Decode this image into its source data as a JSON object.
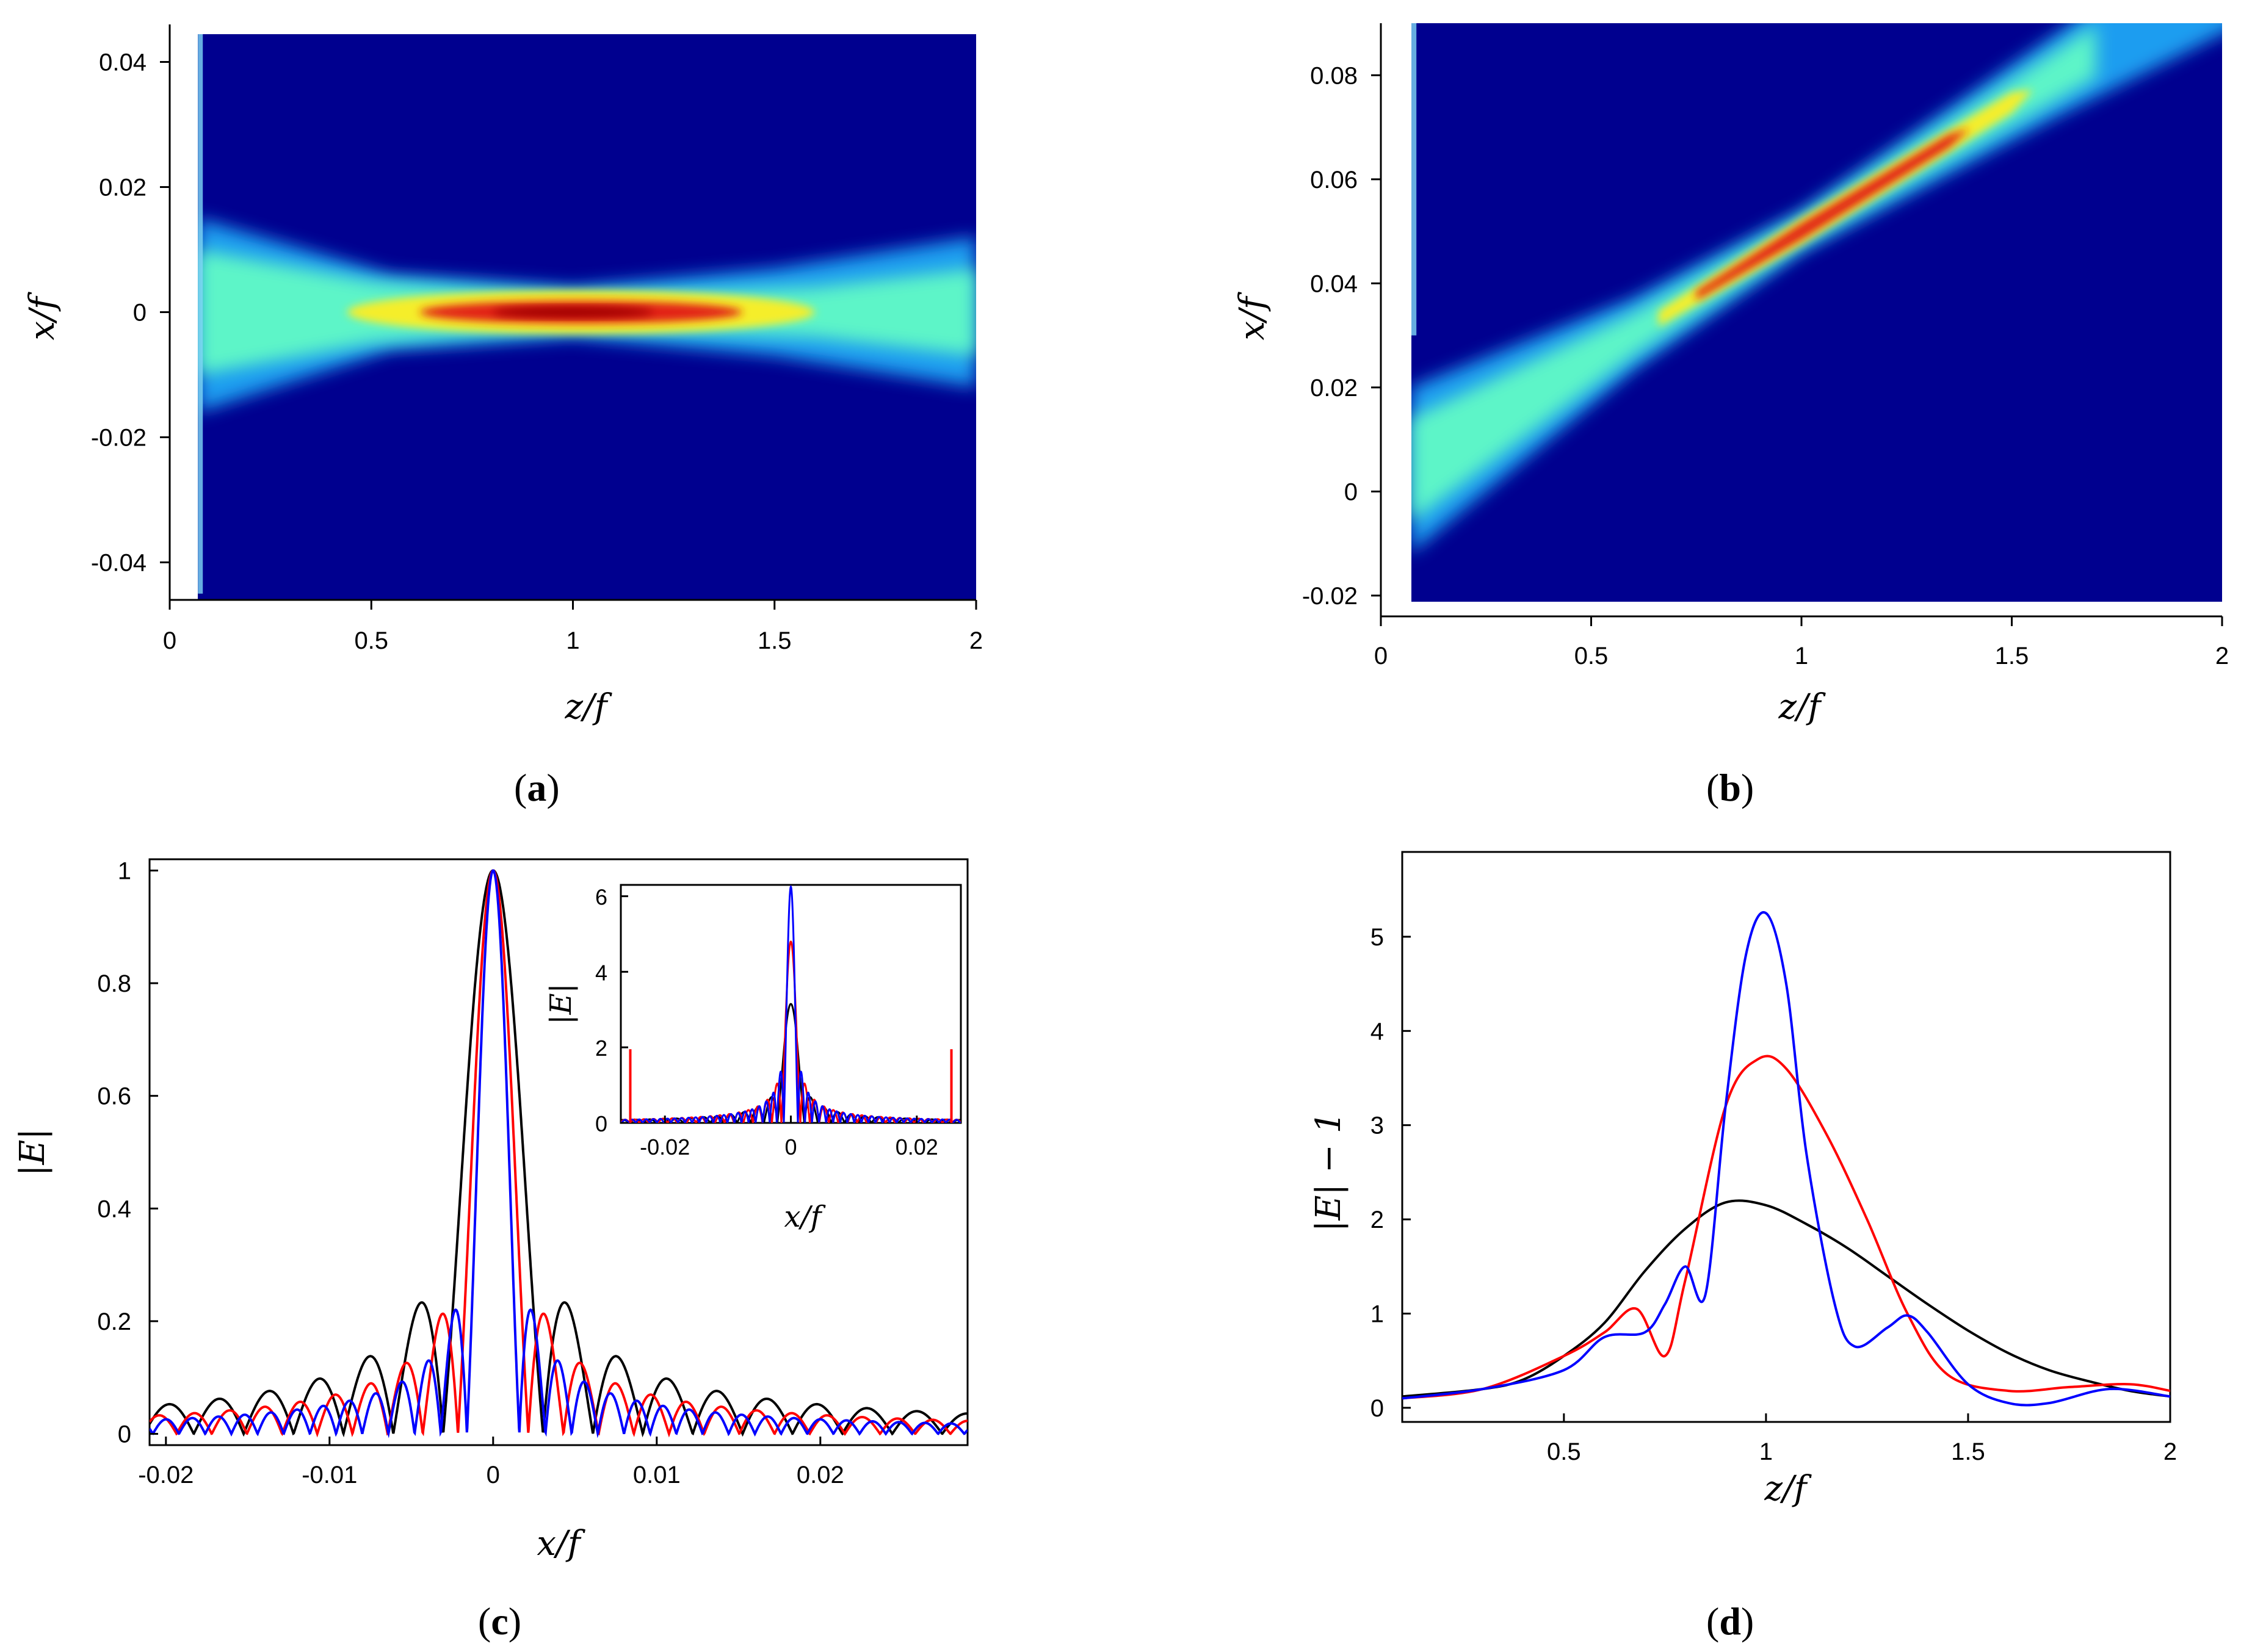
{
  "chart_data": [
    {
      "id": "a",
      "type": "heatmap",
      "panel_label": "a",
      "xlabel": "z/f",
      "ylabel": "x/f",
      "xlim": [
        0,
        2
      ],
      "ylim": [
        -0.046,
        0.046
      ],
      "xticks": [
        "0",
        "0.5",
        "1",
        "1.5",
        "2"
      ],
      "xtick_values": [
        0,
        0.5,
        1,
        1.5,
        2
      ],
      "yticks": [
        "-0.04",
        "-0.02",
        "0",
        "0.02",
        "0.04"
      ],
      "ytick_values": [
        -0.04,
        -0.02,
        0,
        0.02,
        0.04
      ],
      "data_extent": {
        "z": [
          0.07,
          2
        ],
        "x": [
          -0.045,
          0.045
        ]
      },
      "beam": {
        "focus_z": 1.0,
        "focus_x": 0.0,
        "entry_x_min": -0.016,
        "entry_x_max": 0.015,
        "exit_x_min": -0.012,
        "exit_x_max": 0.012
      },
      "colormap": "jet"
    },
    {
      "id": "b",
      "type": "heatmap",
      "panel_label": "b",
      "xlabel": "z/f",
      "ylabel": "x/f",
      "xlim": [
        0,
        2
      ],
      "ylim": [
        -0.024,
        0.09
      ],
      "xticks": [
        "0",
        "0.5",
        "1",
        "1.5",
        "2"
      ],
      "xtick_values": [
        0,
        0.5,
        1,
        1.5,
        2
      ],
      "yticks": [
        "-0.02",
        "0",
        "0.02",
        "0.04",
        "0.06",
        "0.08"
      ],
      "ytick_values": [
        -0.02,
        0,
        0.02,
        0.04,
        0.06,
        0.08
      ],
      "data_extent": {
        "z": [
          0.07,
          2
        ],
        "x": [
          -0.022,
          0.09
        ]
      },
      "beam": {
        "focus_z": 1.0,
        "focus_x": 0.05,
        "entry_x_min": -0.012,
        "entry_x_max": 0.02
      },
      "colormap": "jet"
    },
    {
      "id": "c",
      "type": "line",
      "panel_label": "c",
      "xlabel": "x/f",
      "ylabel": "|E|",
      "xlim": [
        -0.021,
        0.029
      ],
      "ylim": [
        -0.02,
        1.02
      ],
      "xticks": [
        "-0.02",
        "-0.01",
        "0",
        "0.01",
        "0.02"
      ],
      "xtick_values": [
        -0.02,
        -0.01,
        0,
        0.01,
        0.02
      ],
      "yticks": [
        "0",
        "0.2",
        "0.4",
        "0.6",
        "0.8",
        "1"
      ],
      "ytick_values": [
        0,
        0.2,
        0.4,
        0.6,
        0.8,
        1
      ],
      "series": [
        {
          "name": "black",
          "color": "#000000",
          "zero": 0.00305,
          "sidelobe": 0.233
        },
        {
          "name": "red",
          "color": "#ff0000",
          "zero": 0.00215,
          "sidelobe": 0.213
        },
        {
          "name": "blue",
          "color": "#0000ff",
          "zero": 0.0016,
          "sidelobe": 0.22
        }
      ],
      "inset": {
        "xlabel": "x/f",
        "ylabel": "|E|",
        "xlim": [
          -0.027,
          0.027
        ],
        "ylim": [
          0,
          6.3
        ],
        "xticks": [
          "-0.02",
          "0",
          "0.02"
        ],
        "xtick_values": [
          -0.02,
          0,
          0.02
        ],
        "yticks": [
          "0",
          "2",
          "4",
          "6"
        ],
        "ytick_values": [
          0,
          2,
          4,
          6
        ],
        "peaks": {
          "black": 3.15,
          "red": 4.8,
          "blue": 6.25
        },
        "red_edge_spikes": {
          "x": [
            -0.0255,
            0.0255
          ],
          "height": 1.95
        }
      }
    },
    {
      "id": "d",
      "type": "line",
      "panel_label": "d",
      "xlabel": "z/f",
      "ylabel": "|E| − 1",
      "xlim": [
        0.1,
        2
      ],
      "ylim": [
        -0.15,
        5.9
      ],
      "xticks": [
        "0.5",
        "1",
        "1.5",
        "2"
      ],
      "xtick_values": [
        0.5,
        1,
        1.5,
        2
      ],
      "yticks": [
        "0",
        "1",
        "2",
        "3",
        "4",
        "5"
      ],
      "ytick_values": [
        0,
        1,
        2,
        3,
        4,
        5
      ],
      "series": [
        {
          "name": "black",
          "color": "#000000",
          "z": [
            0.1,
            0.3,
            0.4,
            0.5,
            0.6,
            0.7,
            0.8,
            0.9,
            1.0,
            1.1,
            1.2,
            1.3,
            1.4,
            1.5,
            1.6,
            1.7,
            1.8,
            1.9,
            2.0
          ],
          "y": [
            0.12,
            0.2,
            0.3,
            0.55,
            0.9,
            1.45,
            1.9,
            2.18,
            2.15,
            1.95,
            1.7,
            1.4,
            1.1,
            0.82,
            0.58,
            0.4,
            0.28,
            0.18,
            0.12
          ]
        },
        {
          "name": "red",
          "color": "#ff0000",
          "z": [
            0.1,
            0.3,
            0.5,
            0.6,
            0.68,
            0.75,
            0.8,
            0.9,
            0.98,
            1.05,
            1.15,
            1.25,
            1.35,
            1.45,
            1.6,
            1.75,
            1.9,
            2.0
          ],
          "y": [
            0.1,
            0.2,
            0.55,
            0.8,
            1.05,
            0.55,
            1.35,
            3.2,
            3.7,
            3.6,
            2.9,
            2.0,
            1.0,
            0.35,
            0.18,
            0.22,
            0.25,
            0.18
          ]
        },
        {
          "name": "blue",
          "color": "#0000ff",
          "z": [
            0.1,
            0.3,
            0.5,
            0.6,
            0.7,
            0.75,
            0.8,
            0.85,
            0.9,
            0.95,
            1.0,
            1.05,
            1.1,
            1.17,
            1.22,
            1.3,
            1.35,
            1.4,
            1.5,
            1.6,
            1.7,
            1.85,
            2.0
          ],
          "y": [
            0.1,
            0.2,
            0.4,
            0.75,
            0.8,
            1.1,
            1.5,
            1.2,
            3.2,
            4.8,
            5.25,
            4.5,
            2.7,
            1.1,
            0.65,
            0.85,
            0.98,
            0.8,
            0.25,
            0.05,
            0.05,
            0.2,
            0.12
          ]
        }
      ]
    }
  ]
}
